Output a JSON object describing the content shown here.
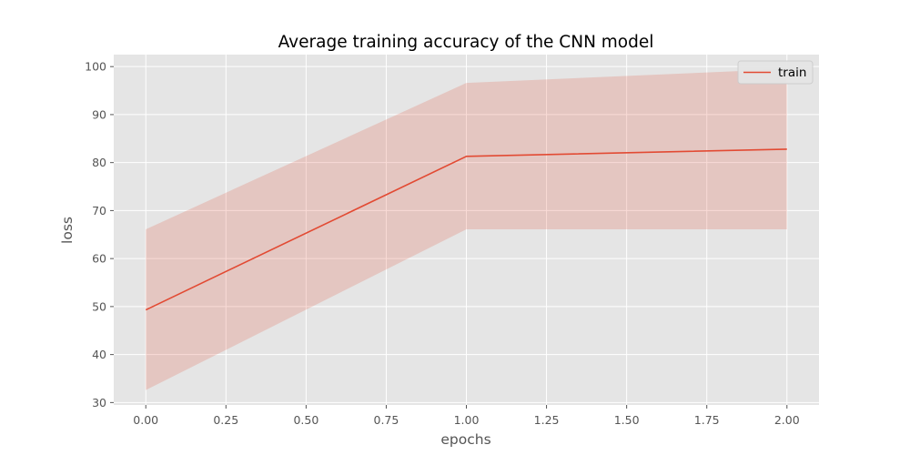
{
  "chart_data": {
    "type": "line",
    "title": "Average training accuracy of the CNN model",
    "xlabel": "epochs",
    "ylabel": "loss",
    "x": [
      0,
      1,
      2
    ],
    "xlim": [
      -0.1,
      2.1
    ],
    "ylim": [
      29.5,
      102.5
    ],
    "xticks": [
      0.0,
      0.25,
      0.5,
      0.75,
      1.0,
      1.25,
      1.5,
      1.75,
      2.0
    ],
    "xtick_labels": [
      "0.00",
      "0.25",
      "0.50",
      "0.75",
      "1.00",
      "1.25",
      "1.50",
      "1.75",
      "2.00"
    ],
    "yticks": [
      30,
      40,
      50,
      60,
      70,
      80,
      90,
      100
    ],
    "ytick_labels": [
      "30",
      "40",
      "50",
      "60",
      "70",
      "80",
      "90",
      "100"
    ],
    "grid": true,
    "legend_position": "top-right",
    "series": [
      {
        "name": "train",
        "values": [
          49.3,
          81.3,
          82.8
        ],
        "band_lower": [
          32.6,
          66.1,
          66.1
        ],
        "band_upper": [
          66.1,
          96.6,
          99.5
        ],
        "color": "#e24a33",
        "band_color": "#e24a33"
      }
    ],
    "background_color": "#e5e5e5",
    "grid_color": "#ffffff"
  }
}
